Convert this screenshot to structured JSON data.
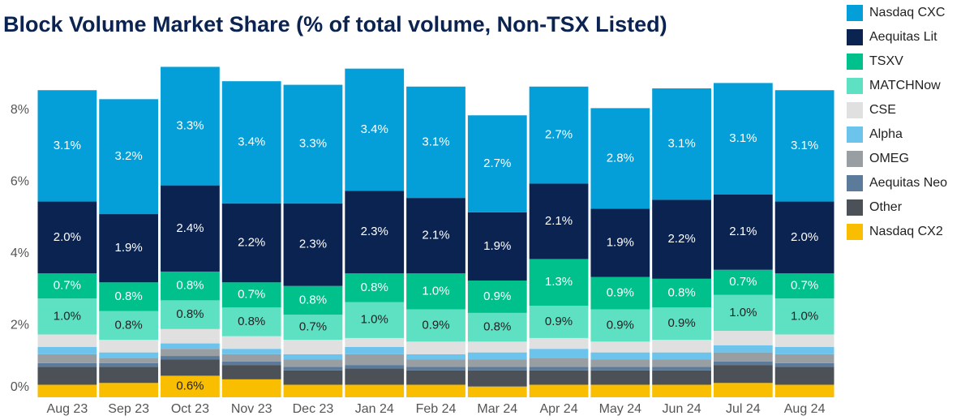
{
  "chart_data": {
    "type": "stacked_bar",
    "title": "Block Volume Market Share (% of total volume, Non-TSX Listed)",
    "categories": [
      "Aug 23",
      "Sep 23",
      "Oct 23",
      "Nov 23",
      "Dec 23",
      "Jan 24",
      "Feb 24",
      "Mar 24",
      "Apr 24",
      "May 24",
      "Jun 24",
      "Jul 24",
      "Aug 24"
    ],
    "ylim": [
      0,
      10
    ],
    "yticks": [
      {
        "value": 0,
        "label": "0%"
      },
      {
        "value": 2,
        "label": "2%"
      },
      {
        "value": 4,
        "label": "4%"
      },
      {
        "value": 6,
        "label": "6%"
      },
      {
        "value": 8,
        "label": "8%"
      }
    ],
    "grid": false,
    "legend": "right",
    "series": [
      {
        "name": "Nasdaq CXC",
        "color": "#049fd9",
        "values": [
          3.1,
          3.2,
          3.3,
          3.4,
          3.3,
          3.4,
          3.1,
          2.7,
          2.7,
          2.8,
          3.1,
          3.1,
          3.1
        ],
        "value_labels": [
          "3.1%",
          "3.2%",
          "3.3%",
          "3.4%",
          "3.3%",
          "3.4%",
          "3.1%",
          "2.7%",
          "2.7%",
          "2.8%",
          "3.1%",
          "3.1%",
          "3.1%"
        ]
      },
      {
        "name": "Aequitas Lit",
        "color": "#0a2351",
        "values": [
          2.0,
          1.9,
          2.4,
          2.2,
          2.3,
          2.3,
          2.1,
          1.9,
          2.1,
          1.9,
          2.2,
          2.1,
          2.0
        ],
        "value_labels": [
          "2.0%",
          "1.9%",
          "2.4%",
          "2.2%",
          "2.3%",
          "2.3%",
          "2.1%",
          "1.9%",
          "2.1%",
          "1.9%",
          "2.2%",
          "2.1%",
          "2.0%"
        ]
      },
      {
        "name": "TSXV",
        "color": "#00c08b",
        "values": [
          0.7,
          0.8,
          0.8,
          0.7,
          0.8,
          0.8,
          1.0,
          0.9,
          1.3,
          0.9,
          0.8,
          0.7,
          0.7
        ],
        "value_labels": [
          "0.7%",
          "0.8%",
          "0.8%",
          "0.7%",
          "0.8%",
          "0.8%",
          "1.0%",
          "0.9%",
          "1.3%",
          "0.9%",
          "0.8%",
          "0.7%",
          "0.7%"
        ]
      },
      {
        "name": "MATCHNow",
        "color": "#5ee0c3",
        "values": [
          1.0,
          0.8,
          0.8,
          0.8,
          0.7,
          1.0,
          0.9,
          0.8,
          0.9,
          0.9,
          0.9,
          1.0,
          1.0
        ],
        "value_labels": [
          "1.0%",
          "0.8%",
          "0.8%",
          "0.8%",
          "0.7%",
          "1.0%",
          "0.9%",
          "0.8%",
          "0.9%",
          "0.9%",
          "0.9%",
          "1.0%",
          "1.0%"
        ]
      },
      {
        "name": "CSE",
        "color": "#e0e0e0",
        "values": [
          0.35,
          0.35,
          0.4,
          0.35,
          0.4,
          0.25,
          0.35,
          0.3,
          0.3,
          0.3,
          0.35,
          0.4,
          0.35
        ]
      },
      {
        "name": "Alpha",
        "color": "#6cc4ec",
        "values": [
          0.2,
          0.15,
          0.15,
          0.15,
          0.15,
          0.2,
          0.15,
          0.2,
          0.25,
          0.2,
          0.2,
          0.2,
          0.2
        ]
      },
      {
        "name": "OMEG",
        "color": "#999ea3",
        "values": [
          0.25,
          0.15,
          0.2,
          0.2,
          0.2,
          0.3,
          0.2,
          0.2,
          0.25,
          0.2,
          0.2,
          0.25,
          0.25
        ]
      },
      {
        "name": "Aequitas Neo",
        "color": "#5c7a99",
        "values": [
          0.1,
          0.1,
          0.1,
          0.1,
          0.1,
          0.1,
          0.1,
          0.1,
          0.1,
          0.1,
          0.1,
          0.1,
          0.1
        ]
      },
      {
        "name": "Other",
        "color": "#4b5157",
        "values": [
          0.5,
          0.45,
          0.45,
          0.4,
          0.4,
          0.45,
          0.4,
          0.45,
          0.4,
          0.4,
          0.4,
          0.5,
          0.5
        ]
      },
      {
        "name": "Nasdaq CX2",
        "color": "#f9be00",
        "values": [
          0.35,
          0.4,
          0.6,
          0.5,
          0.35,
          0.35,
          0.35,
          0.3,
          0.35,
          0.35,
          0.35,
          0.4,
          0.35
        ],
        "value_labels": [
          null,
          null,
          "0.6%",
          null,
          null,
          null,
          null,
          null,
          null,
          null,
          null,
          null,
          null
        ]
      }
    ]
  }
}
